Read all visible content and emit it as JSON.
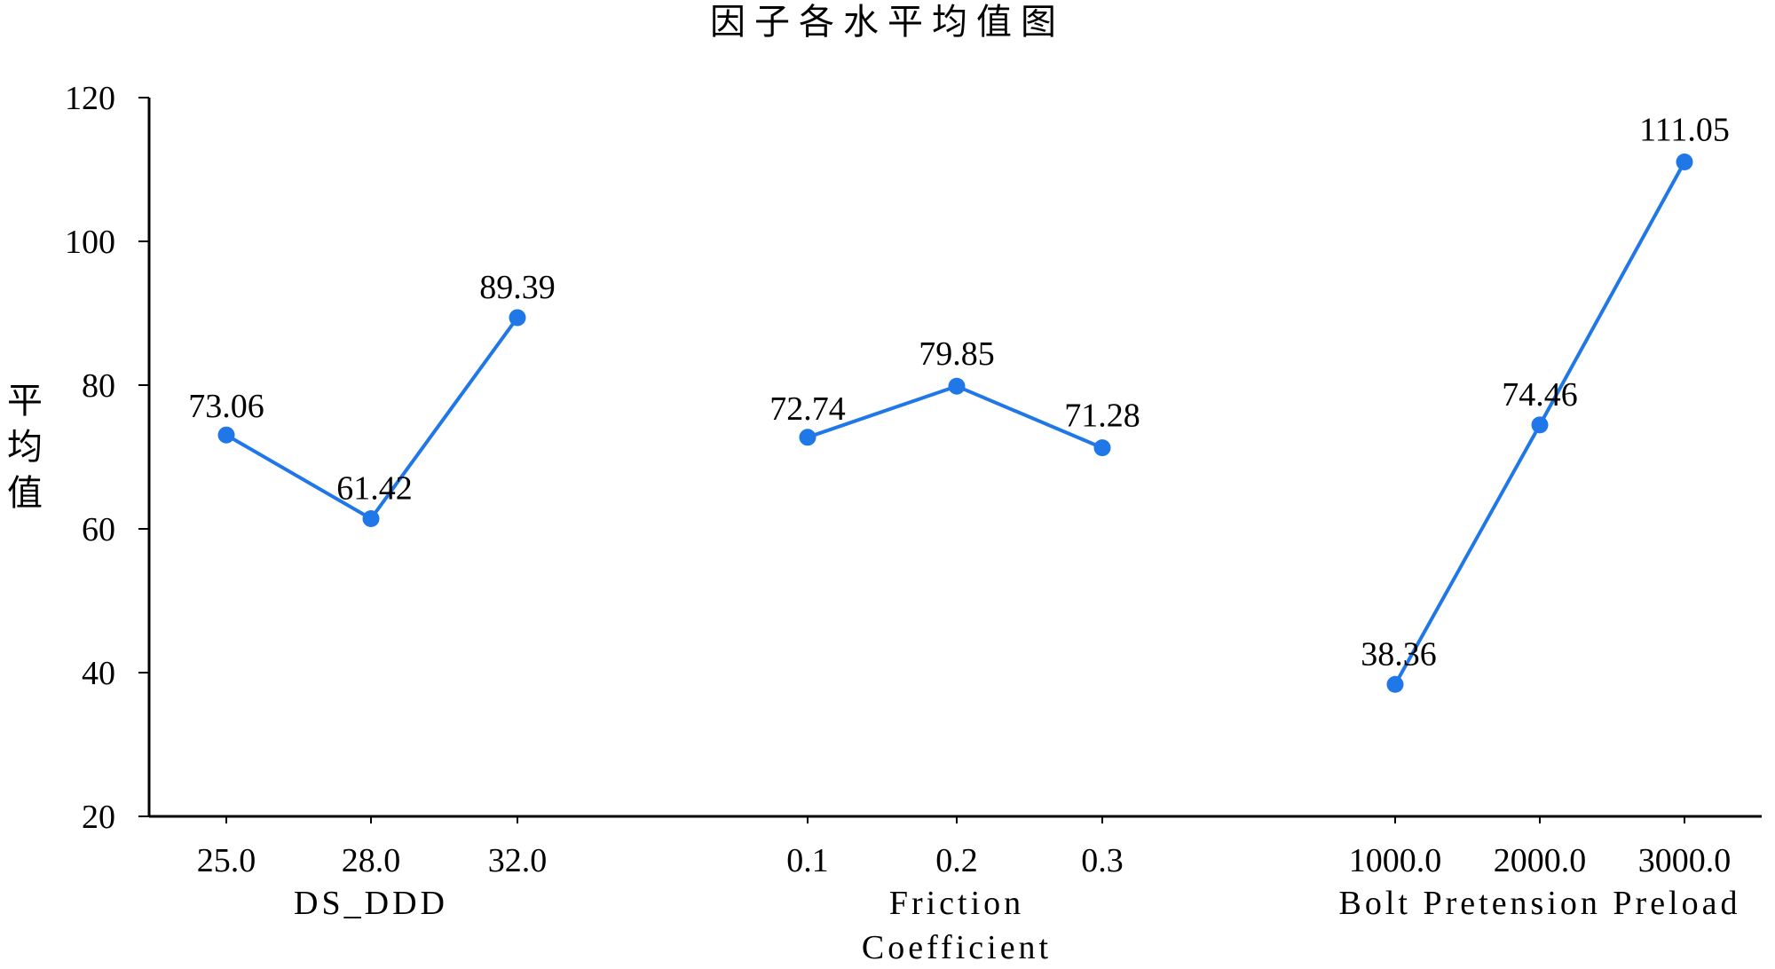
{
  "chart_data": {
    "type": "line",
    "title": "因子各水平均值图",
    "ylabel": "平均值",
    "ylim": [
      20,
      120
    ],
    "yticks": [
      20,
      40,
      60,
      80,
      100,
      120
    ],
    "grid": false,
    "series_color": "#1f77e8",
    "groups": [
      {
        "name": "DS_DDD",
        "name_lines": [
          "DS_DDD"
        ],
        "categories": [
          "25.0",
          "28.0",
          "32.0"
        ],
        "values": [
          73.06,
          61.42,
          89.39
        ],
        "labels": [
          "73.06",
          "61.42",
          "89.39"
        ]
      },
      {
        "name": "Friction Coefficient",
        "name_lines": [
          "Friction",
          "Coefficient"
        ],
        "categories": [
          "0.1",
          "0.2",
          "0.3"
        ],
        "values": [
          72.74,
          79.85,
          71.28
        ],
        "labels": [
          "72.74",
          "79.85",
          "71.28"
        ]
      },
      {
        "name": "Bolt Pretension Preload",
        "name_lines": [
          "Bolt Pretension Preload"
        ],
        "categories": [
          "1000.0",
          "2000.0",
          "3000.0"
        ],
        "values": [
          38.36,
          74.46,
          111.05
        ],
        "labels": [
          "38.36",
          "74.46",
          "111.05"
        ]
      }
    ]
  }
}
